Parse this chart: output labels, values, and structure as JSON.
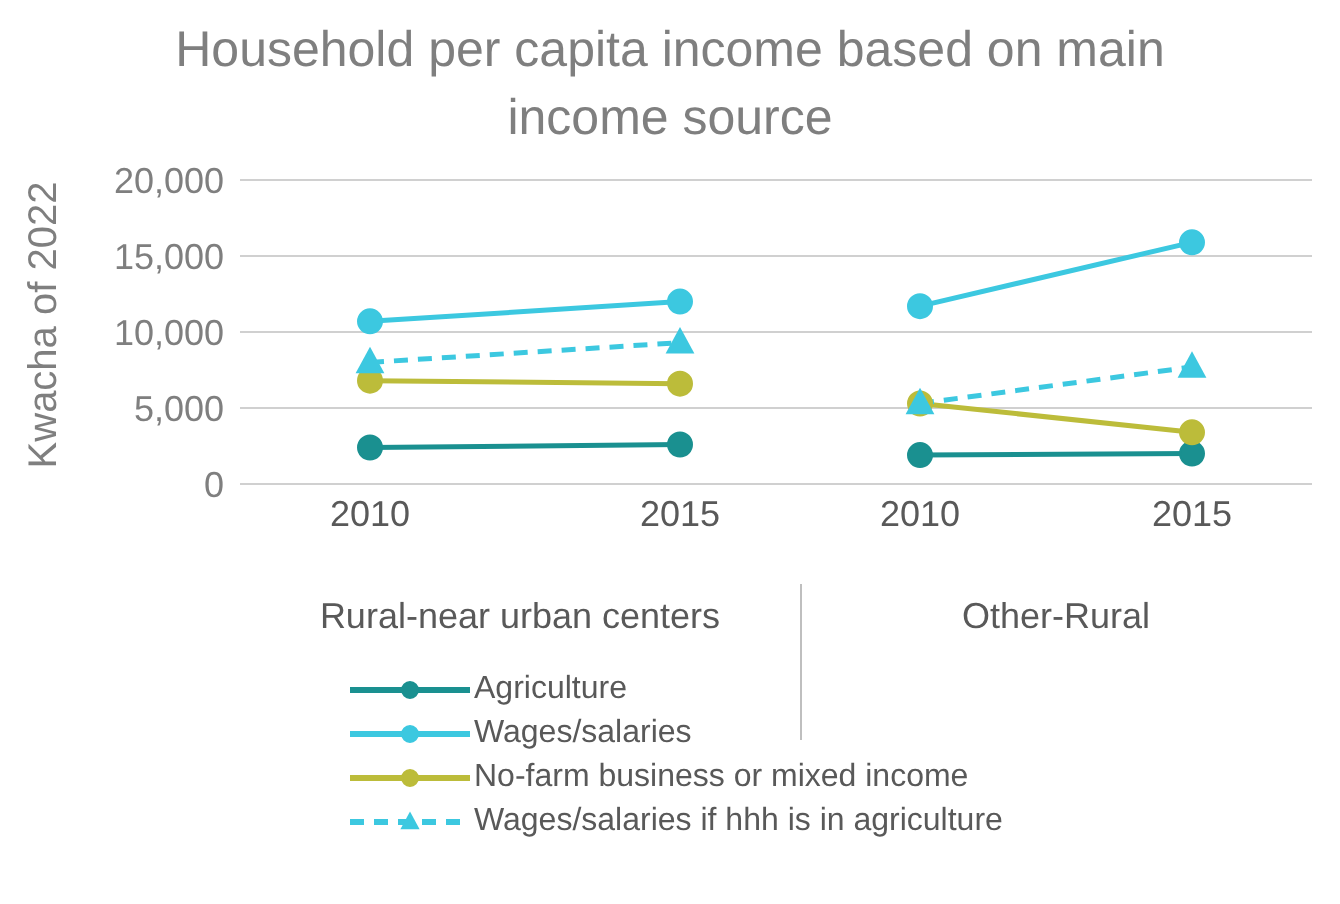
{
  "chart_data": [
    {
      "type": "line",
      "title": "Household per capita income based on main income source",
      "ylabel": "Kwacha of 2022",
      "xlabel": "Rural-near urban centers",
      "categories": [
        "2010",
        "2015"
      ],
      "series": [
        {
          "name": "Agriculture",
          "color": "#1a9090",
          "marker": "circle",
          "values": [
            2400,
            2600
          ]
        },
        {
          "name": "Wages/salaries",
          "color": "#3cc8e0",
          "marker": "circle",
          "values": [
            10700,
            12000
          ]
        },
        {
          "name": "No-farm business or mixed income",
          "color": "#bcbc3a",
          "marker": "circle",
          "values": [
            6800,
            6600
          ]
        },
        {
          "name": "Wages/salaries if hhh is in agriculture",
          "color": "#3cc8e0",
          "marker": "triangle",
          "line_style": "dashed",
          "values": [
            8000,
            9300
          ]
        }
      ],
      "ylim": [
        0,
        20000
      ],
      "yticks": [
        {
          "value": 0,
          "label": "0"
        },
        {
          "value": 5000,
          "label": "5,000"
        },
        {
          "value": 10000,
          "label": "10,000"
        },
        {
          "value": 15000,
          "label": "15,000"
        },
        {
          "value": 20000,
          "label": "20,000"
        }
      ],
      "grid": "y",
      "legend": "bottom"
    },
    {
      "type": "line",
      "xlabel": "Other-Rural",
      "categories": [
        "2010",
        "2015"
      ],
      "series": [
        {
          "color": "#1a9090",
          "marker": "circle",
          "values": [
            1900,
            2000
          ]
        },
        {
          "color": "#3cc8e0",
          "marker": "circle",
          "values": [
            11700,
            15900
          ]
        },
        {
          "color": "#bcbc3a",
          "marker": "circle",
          "values": [
            5300,
            3400
          ]
        },
        {
          "color": "#3cc8e0",
          "marker": "triangle",
          "line_style": "dashed",
          "values": [
            5300,
            7700
          ]
        }
      ],
      "ylim": [
        0,
        20000
      ],
      "yticks": [
        0,
        5000,
        10000,
        15000,
        20000
      ],
      "grid": "y",
      "tick_labels": "x"
    }
  ]
}
